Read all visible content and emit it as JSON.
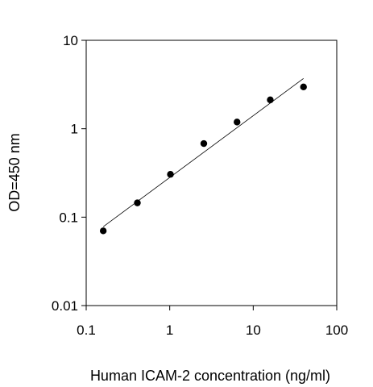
{
  "chart_data": {
    "type": "scatter",
    "title": "",
    "xlabel": "Human ICAM-2 concentration (ng/ml)",
    "ylabel": "OD=450 nm",
    "x_scale": "log",
    "y_scale": "log",
    "xlim": [
      0.1,
      100
    ],
    "ylim": [
      0.01,
      10
    ],
    "x_ticks": [
      "0.1",
      "1",
      "10",
      "100"
    ],
    "y_ticks": [
      "0.01",
      "0.1",
      "1",
      "10"
    ],
    "grid": false,
    "legend": "none",
    "point_color": "#000000",
    "points": [
      {
        "x": 0.16,
        "y": 0.07
      },
      {
        "x": 0.41,
        "y": 0.145
      },
      {
        "x": 1.02,
        "y": 0.305
      },
      {
        "x": 2.56,
        "y": 0.68
      },
      {
        "x": 6.4,
        "y": 1.19
      },
      {
        "x": 16.0,
        "y": 2.12
      },
      {
        "x": 40.0,
        "y": 2.97
      }
    ],
    "fit_line": {
      "x": [
        0.16,
        40.0
      ],
      "y": [
        0.078,
        3.7
      ]
    }
  }
}
